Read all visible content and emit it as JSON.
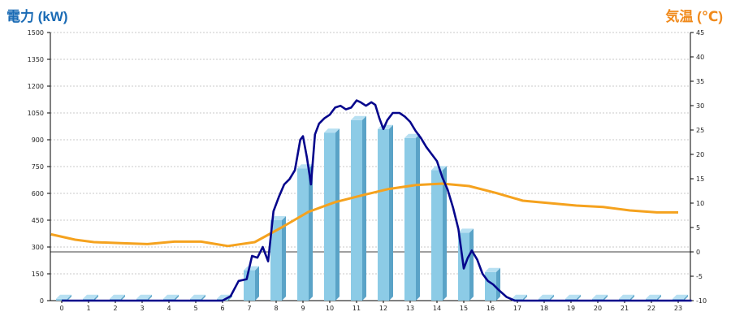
{
  "colors": {
    "left_title": "#1a6bb5",
    "right_title": "#f08a1c",
    "bar_front": "#8ccbe6",
    "bar_side": "#5aa3c7",
    "bar_top": "#b7e0f2",
    "power_line": "#06068c",
    "temp_line": "#f5a21e",
    "grid": "#c8c8c8"
  },
  "chart_data": {
    "type": "bar+line",
    "left_axis": {
      "label": "電力 (kW)",
      "ticks": [
        0,
        150,
        300,
        450,
        600,
        750,
        900,
        1050,
        1200,
        1350,
        1500
      ],
      "range": [
        0,
        1500
      ]
    },
    "right_axis": {
      "label": "気温 (℃)",
      "ticks": [
        -10,
        -5,
        0,
        5,
        10,
        15,
        20,
        25,
        30,
        35,
        40,
        45
      ],
      "range": [
        -10,
        45
      ]
    },
    "x_categories": [
      "0",
      "1",
      "2",
      "3",
      "4",
      "5",
      "6",
      "7",
      "8",
      "9",
      "10",
      "11",
      "12",
      "13",
      "14",
      "15",
      "16",
      "17",
      "18",
      "19",
      "20",
      "21",
      "22",
      "23"
    ],
    "bars": {
      "axis": "left",
      "values": [
        10,
        10,
        10,
        10,
        10,
        10,
        10,
        170,
        450,
        740,
        940,
        1010,
        960,
        910,
        730,
        380,
        160,
        10,
        10,
        10,
        10,
        10,
        10,
        10
      ]
    },
    "power_line": {
      "axis": "left",
      "points": [
        [
          0,
          0
        ],
        [
          6,
          0
        ],
        [
          6.3,
          25
        ],
        [
          6.6,
          110
        ],
        [
          6.9,
          120
        ],
        [
          7.1,
          250
        ],
        [
          7.3,
          240
        ],
        [
          7.5,
          300
        ],
        [
          7.7,
          220
        ],
        [
          7.9,
          500
        ],
        [
          8.1,
          580
        ],
        [
          8.3,
          650
        ],
        [
          8.5,
          680
        ],
        [
          8.7,
          730
        ],
        [
          8.9,
          900
        ],
        [
          9.0,
          920
        ],
        [
          9.15,
          800
        ],
        [
          9.3,
          650
        ],
        [
          9.45,
          930
        ],
        [
          9.6,
          990
        ],
        [
          9.8,
          1020
        ],
        [
          10.0,
          1040
        ],
        [
          10.2,
          1080
        ],
        [
          10.4,
          1090
        ],
        [
          10.6,
          1070
        ],
        [
          10.8,
          1080
        ],
        [
          11.0,
          1120
        ],
        [
          11.15,
          1110
        ],
        [
          11.35,
          1090
        ],
        [
          11.55,
          1110
        ],
        [
          11.7,
          1095
        ],
        [
          11.85,
          1020
        ],
        [
          12.0,
          960
        ],
        [
          12.15,
          1010
        ],
        [
          12.35,
          1050
        ],
        [
          12.6,
          1050
        ],
        [
          12.8,
          1030
        ],
        [
          13.0,
          1000
        ],
        [
          13.2,
          950
        ],
        [
          13.4,
          910
        ],
        [
          13.6,
          860
        ],
        [
          13.8,
          820
        ],
        [
          14.0,
          780
        ],
        [
          14.2,
          690
        ],
        [
          14.4,
          620
        ],
        [
          14.6,
          520
        ],
        [
          14.8,
          400
        ],
        [
          15.0,
          180
        ],
        [
          15.15,
          240
        ],
        [
          15.3,
          280
        ],
        [
          15.5,
          230
        ],
        [
          15.7,
          150
        ],
        [
          15.9,
          110
        ],
        [
          16.1,
          90
        ],
        [
          16.3,
          60
        ],
        [
          16.6,
          20
        ],
        [
          16.9,
          0
        ],
        [
          23.5,
          0
        ]
      ]
    },
    "temp_line": {
      "axis": "right",
      "points": [
        [
          -0.4,
          3.6
        ],
        [
          0.5,
          2.5
        ],
        [
          1.2,
          2.0
        ],
        [
          2.2,
          1.8
        ],
        [
          3.2,
          1.6
        ],
        [
          4.2,
          2.1
        ],
        [
          5.2,
          2.1
        ],
        [
          6.2,
          1.2
        ],
        [
          7.2,
          2.0
        ],
        [
          8.2,
          5.0
        ],
        [
          9.2,
          8.2
        ],
        [
          10.2,
          10.2
        ],
        [
          11.2,
          11.6
        ],
        [
          12.2,
          12.9
        ],
        [
          13.2,
          13.7
        ],
        [
          14.2,
          14.0
        ],
        [
          15.2,
          13.5
        ],
        [
          16.2,
          12.1
        ],
        [
          17.2,
          10.5
        ],
        [
          18.2,
          10.0
        ],
        [
          19.2,
          9.5
        ],
        [
          20.2,
          9.2
        ],
        [
          21.2,
          8.5
        ],
        [
          22.2,
          8.1
        ],
        [
          23.0,
          8.1
        ]
      ]
    },
    "grid": true
  }
}
